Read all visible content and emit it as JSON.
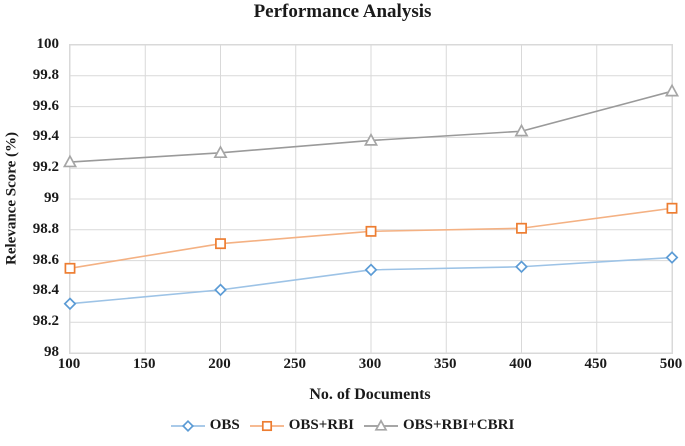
{
  "title": "Performance Analysis",
  "chart_data": {
    "type": "line",
    "title": "Performance Analysis",
    "xlabel": "No. of Documents",
    "ylabel": "Relevance Score (%)",
    "x": [
      100,
      200,
      300,
      400,
      500
    ],
    "xlim": [
      100,
      500
    ],
    "ylim": [
      98,
      100
    ],
    "x_ticks": [
      100,
      150,
      200,
      250,
      300,
      350,
      400,
      450,
      500
    ],
    "y_ticks": [
      100,
      99.8,
      99.6,
      99.4,
      99.2,
      99,
      98.8,
      98.6,
      98.4,
      98.2,
      98
    ],
    "y_tick_labels": [
      "100",
      "99.8",
      "99.6",
      "99.4",
      "99.2",
      "99",
      "98.8",
      "98.6",
      "98.4",
      "98.2",
      "98"
    ],
    "grid": true,
    "grid_color": "#D9D9D9",
    "axis_text_color": "#1a1a1a",
    "legend_position": "bottom",
    "series": [
      {
        "name": "OBS",
        "marker": "diamond",
        "marker_color": "#5B9BD5",
        "line_color": "#9DC3E6",
        "values": [
          98.32,
          98.41,
          98.54,
          98.56,
          98.62
        ]
      },
      {
        "name": "OBS+RBI",
        "marker": "square",
        "marker_color": "#ED7D31",
        "line_color": "#F4B183",
        "values": [
          98.55,
          98.71,
          98.79,
          98.81,
          98.94
        ]
      },
      {
        "name": "OBS+RBI+CBRI",
        "marker": "triangle",
        "marker_color": "#A6A6A6",
        "line_color": "#9A9A9A",
        "values": [
          99.24,
          99.3,
          99.38,
          99.44,
          99.7
        ]
      }
    ]
  }
}
